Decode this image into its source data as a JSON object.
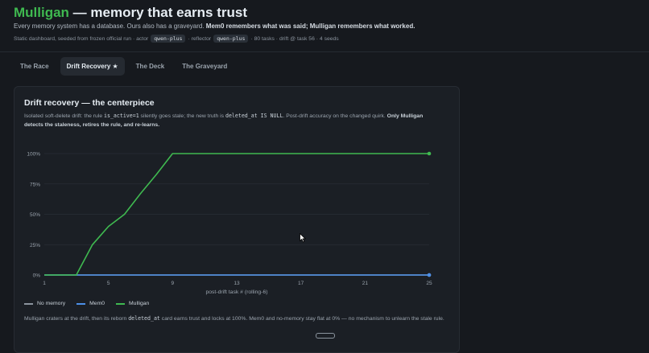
{
  "header": {
    "brand": "Mulligan",
    "title_rest": " — memory that earns trust",
    "tagline_plain": "Every memory system has a database. Ours also has a graveyard. ",
    "tagline_bold": "Mem0 remembers what was said; Mulligan remembers what worked.",
    "meta": {
      "prefix": "Static dashboard, seeded from frozen official run · actor",
      "actor": "qwen-plus",
      "mid": "· reflector",
      "reflector": "qwen-plus",
      "suffix": "· 80 tasks · drift @ task 56 · 4 seeds"
    }
  },
  "tabs": [
    {
      "label": "The Race"
    },
    {
      "label": "Drift Recovery ★",
      "active": true
    },
    {
      "label": "The Deck"
    },
    {
      "label": "The Graveyard"
    }
  ],
  "card": {
    "title": "Drift recovery — the centerpiece",
    "desc": {
      "p1": "Isolated soft-delete drift: the rule ",
      "code1": "is_active=1",
      "p2": " silently goes stale; the new truth is ",
      "code2": "deleted_at IS NULL",
      "p3": ". Post-drift accuracy on the changed quirk. ",
      "bold": "Only Mulligan detects the staleness, retires the rule, and re-learns."
    },
    "footer": {
      "p1": "Mulligan craters at the drift, then its reborn ",
      "code": "deleted_at",
      "p2": " card earns trust and locks at 100%. Mem0 and no-memory stay flat at 0% — no mechanism to unlearn the stale rule."
    }
  },
  "chart_data": {
    "type": "line",
    "xlabel": "post-drift task # (rolling-6)",
    "ylabel": "",
    "x_ticks": [
      1,
      5,
      9,
      13,
      17,
      21,
      25
    ],
    "y_ticks": [
      0,
      25,
      50,
      75,
      100
    ],
    "y_tick_labels": [
      "0%",
      "25%",
      "50%",
      "75%",
      "100%"
    ],
    "xlim": [
      1,
      25
    ],
    "ylim": [
      0,
      100
    ],
    "grid": true,
    "legend_position": "bottom-left",
    "x": [
      1,
      2,
      3,
      4,
      5,
      6,
      7,
      8,
      9,
      10,
      11,
      12,
      13,
      14,
      15,
      16,
      17,
      18,
      19,
      20,
      21,
      22,
      23,
      24,
      25
    ],
    "series": [
      {
        "name": "No memory",
        "color": "#8b949e",
        "values": [
          0,
          0,
          0,
          0,
          0,
          0,
          0,
          0,
          0,
          0,
          0,
          0,
          0,
          0,
          0,
          0,
          0,
          0,
          0,
          0,
          0,
          0,
          0,
          0,
          0
        ]
      },
      {
        "name": "Mem0",
        "color": "#4c8fe8",
        "values": [
          0,
          0,
          0,
          0,
          0,
          0,
          0,
          0,
          0,
          0,
          0,
          0,
          0,
          0,
          0,
          0,
          0,
          0,
          0,
          0,
          0,
          0,
          0,
          0,
          0
        ]
      },
      {
        "name": "Mulligan",
        "color": "#3fb950",
        "values": [
          0,
          0,
          0,
          25,
          40,
          50,
          67,
          83,
          100,
          100,
          100,
          100,
          100,
          100,
          100,
          100,
          100,
          100,
          100,
          100,
          100,
          100,
          100,
          100,
          100
        ]
      }
    ]
  }
}
